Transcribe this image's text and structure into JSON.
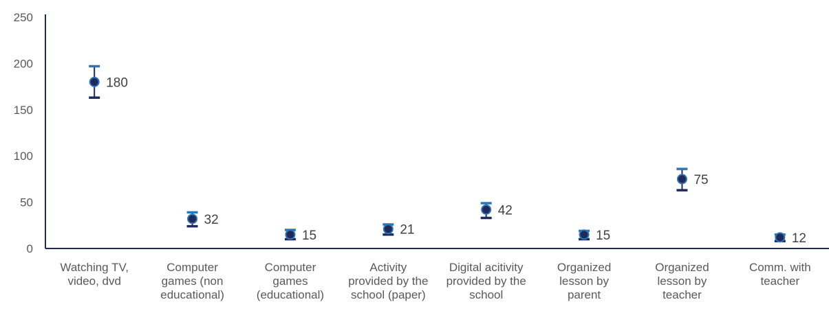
{
  "chart_data": {
    "type": "scatter",
    "title": "",
    "xlabel": "",
    "ylabel": "",
    "ylim": [
      0,
      250
    ],
    "yticks": [
      0,
      50,
      100,
      150,
      200,
      250
    ],
    "grid": false,
    "legend": "none",
    "categories": [
      [
        "Watching TV,",
        "video, dvd"
      ],
      [
        "Computer",
        "games (non",
        "educational)"
      ],
      [
        "Computer",
        "games",
        "(educational)"
      ],
      [
        "Activity",
        "provided by the",
        "school (paper)"
      ],
      [
        "Digital acitivity",
        "provided by the",
        "school"
      ],
      [
        "Organized",
        "lesson by",
        "parent"
      ],
      [
        "Organized",
        "lesson by",
        "teacher"
      ],
      [
        "Comm. with",
        "teacher"
      ]
    ],
    "values": [
      180,
      32,
      15,
      21,
      42,
      15,
      75,
      12
    ],
    "error_upper": [
      197,
      39,
      20,
      26,
      49,
      19,
      86,
      15
    ],
    "error_lower": [
      163,
      24,
      10,
      15,
      33,
      10,
      63,
      8
    ],
    "data_labels": [
      "180",
      "32",
      "15",
      "21",
      "42",
      "15",
      "75",
      "12"
    ],
    "colors": {
      "marker_fill": "#1F2A5A",
      "marker_stroke": "#2E75B6",
      "error_upper": "#2E75B6",
      "error_lower": "#1F2A5A",
      "axis": "#1F2A5A"
    }
  }
}
